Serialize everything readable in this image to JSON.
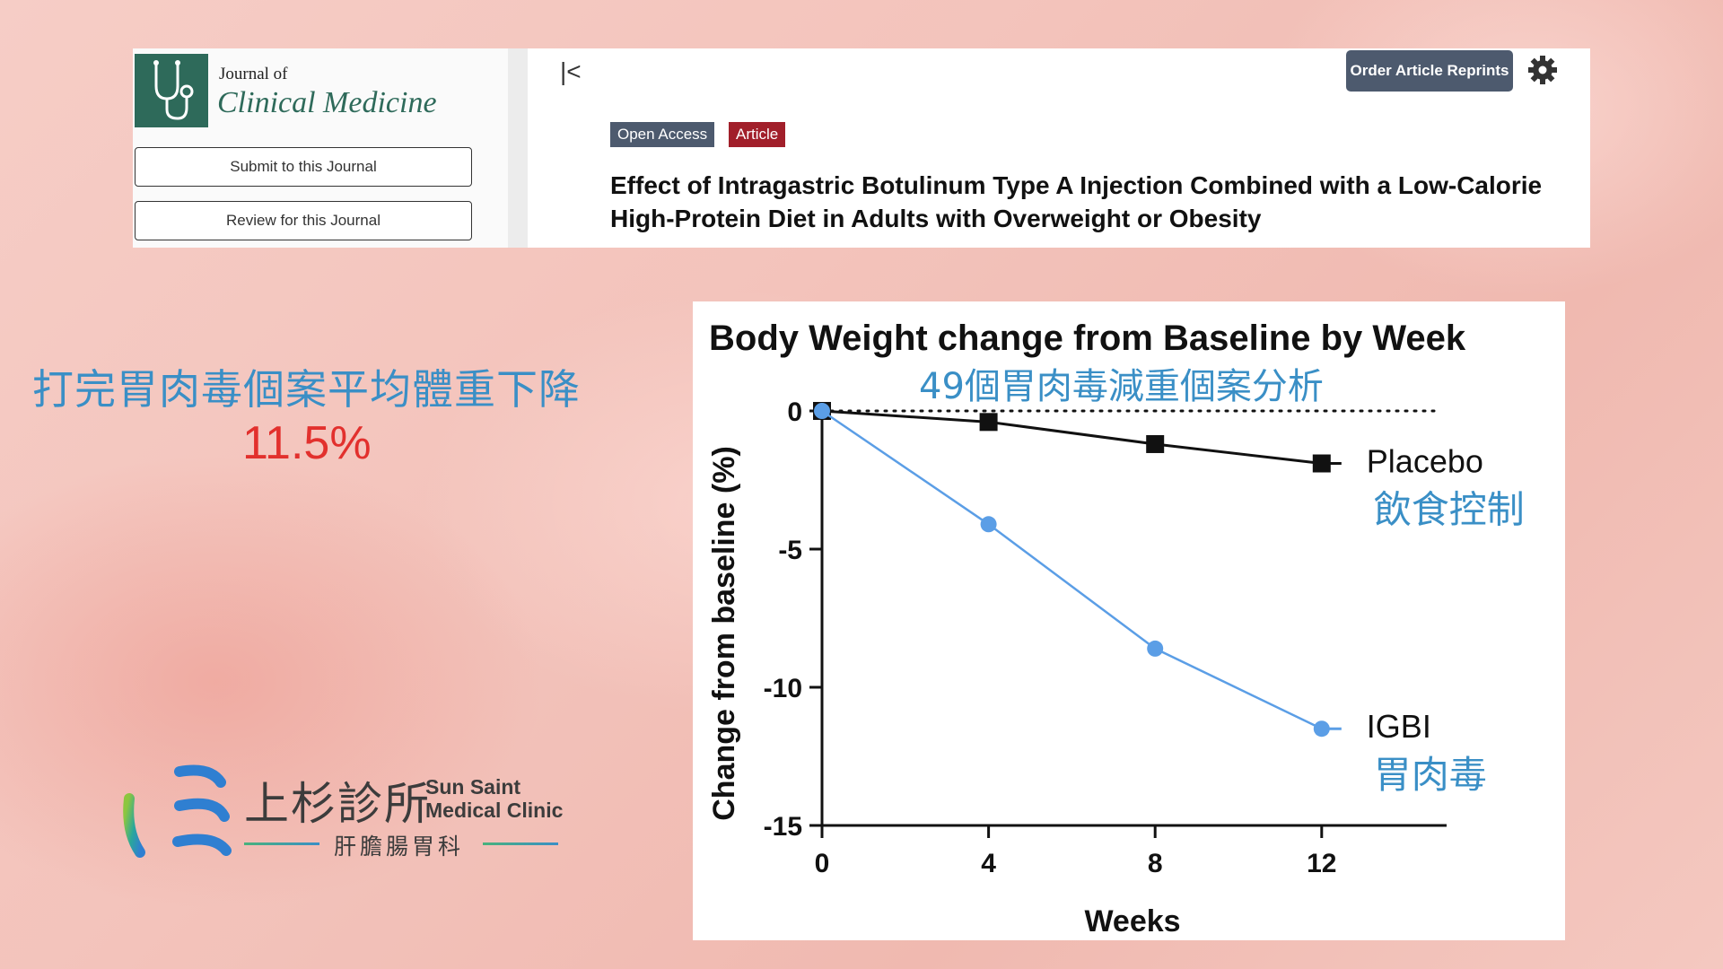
{
  "journal": {
    "of_label": "Journal of",
    "name": "Clinical Medicine",
    "submit_label": "Submit to this Journal",
    "review_label": "Review for this Journal",
    "collapse_glyph": "|<",
    "reprints_label": "Order Article Reprints",
    "badge_open_access": "Open Access",
    "badge_article": "Article",
    "article_title": "Effect of Intragastric Botulinum Type A Injection Combined with a Low-Calorie High-Protein Diet in Adults with Overweight or Obesity",
    "brand_color": "#2e6a5a",
    "article_badge_color": "#a11f2a"
  },
  "promo": {
    "headline": "打完胃肉毒個案平均體重下降",
    "value": "11.5%",
    "headline_color": "#3a8fc6",
    "value_color": "#e2302d"
  },
  "clinic": {
    "name_cn": "上杉診所",
    "name_en_line1": "Sun Saint",
    "name_en_line2": "Medical Clinic",
    "department": "肝膽腸胃科"
  },
  "chart_data": {
    "type": "line",
    "title": "Body Weight change from Baseline by Week",
    "subtitle": "49個胃肉毒減重個案分析",
    "xlabel": "Weeks",
    "ylabel": "Change from baseline (%)",
    "x": [
      0,
      4,
      8,
      12
    ],
    "xlim": [
      0,
      15
    ],
    "ylim": [
      -15,
      0
    ],
    "xticks": [
      "0",
      "4",
      "8",
      "12"
    ],
    "yticks": [
      "0",
      "-5",
      "-10",
      "-15"
    ],
    "reference_line": 0,
    "series": [
      {
        "name": "Placebo",
        "label_cn": "飲食控制",
        "values": [
          0,
          -0.4,
          -1.2,
          -1.9
        ],
        "marker": "square",
        "color": "#111111"
      },
      {
        "name": "IGBI",
        "label_cn": "胃肉毒",
        "values": [
          0,
          -4.1,
          -8.6,
          -11.5
        ],
        "marker": "circle",
        "color": "#5b9ee6"
      }
    ]
  }
}
